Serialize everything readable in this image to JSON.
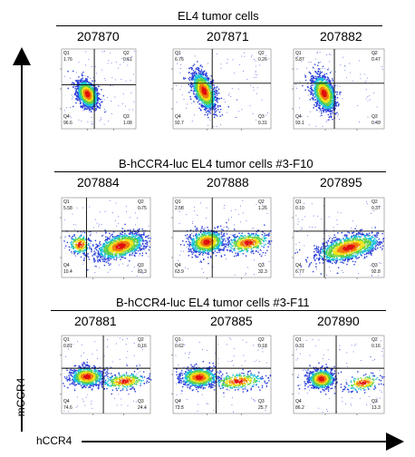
{
  "chart_data": {
    "type": "scatter",
    "title": "",
    "xlabel": "hCCR4",
    "ylabel": "mCCR4",
    "row_titles": [
      "EL4 tumor cells",
      "B-hCCR4-luc EL4 tumor cells #3-F10",
      "B-hCCR4-luc EL4 tumor cells #3-F11"
    ],
    "quadrant_names": [
      "Q1",
      "Q2",
      "Q3",
      "Q4"
    ],
    "panels": [
      {
        "sample": "207870",
        "Q1": "1.76",
        "Q2": "0.61",
        "Q3": "1.08",
        "Q4": "96.6"
      },
      {
        "sample": "207871",
        "Q1": "6.76",
        "Q2": "0.26",
        "Q3": "0.31",
        "Q4": "92.7"
      },
      {
        "sample": "207882",
        "Q1": "5.87",
        "Q2": "0.47",
        "Q3": "0.49",
        "Q4": "93.1"
      },
      {
        "sample": "207884",
        "Q1": "5.58",
        "Q2": "0.75",
        "Q3": "82.3",
        "Q4": "10.4"
      },
      {
        "sample": "207888",
        "Q1": "2.58",
        "Q2": "1.26",
        "Q3": "32.3",
        "Q4": "63.9"
      },
      {
        "sample": "207895",
        "Q1": "0.10",
        "Q2": "0.37",
        "Q3": "92.8",
        "Q4": "6.77"
      },
      {
        "sample": "207881",
        "Q1": "0.81",
        "Q2": "0.16",
        "Q3": "24.4",
        "Q4": "74.6"
      },
      {
        "sample": "207885",
        "Q1": "0.62",
        "Q2": "0.18",
        "Q3": "25.7",
        "Q4": "73.5"
      },
      {
        "sample": "207890",
        "Q1": "0.31",
        "Q2": "0.16",
        "Q3": "13.3",
        "Q4": "86.2"
      }
    ]
  }
}
